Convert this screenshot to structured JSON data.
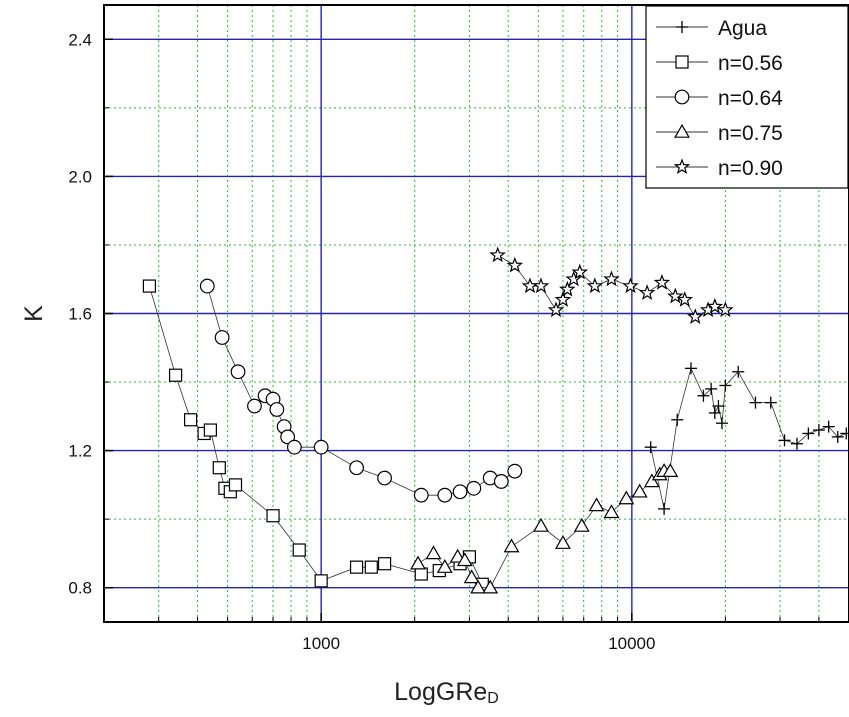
{
  "chart_data": {
    "type": "scatter",
    "xlabel": "LogGRe",
    "xlabel_subscript": "D",
    "ylabel": "K",
    "xscale": "log",
    "xlim": [
      200,
      50000
    ],
    "ylim": [
      0.7,
      2.5
    ],
    "x_major_ticks": [
      1000,
      10000
    ],
    "x_tick_labels": [
      "1000",
      "10000"
    ],
    "y_major_ticks": [
      0.8,
      1.2,
      1.6,
      2.0,
      2.4
    ],
    "y_tick_labels": [
      "0.8",
      "1.2",
      "1.6",
      "2.0",
      "2.4"
    ],
    "y_minor_gridlines": [
      1.0,
      1.4,
      1.8,
      2.2
    ],
    "grid": "major solid blue, minor dotted green",
    "legend_position": "top-right",
    "colors": {
      "major_grid": "#2323b8",
      "minor_grid": "#2eb82e",
      "series": "#000000"
    },
    "series": [
      {
        "name": "Agua",
        "marker": "plus",
        "points": [
          [
            11500,
            1.21
          ],
          [
            12700,
            1.03
          ],
          [
            14000,
            1.29
          ],
          [
            15500,
            1.44
          ],
          [
            17000,
            1.36
          ],
          [
            18000,
            1.38
          ],
          [
            18500,
            1.31
          ],
          [
            19000,
            1.33
          ],
          [
            19500,
            1.28
          ],
          [
            20000,
            1.39
          ],
          [
            22000,
            1.43
          ],
          [
            25000,
            1.34
          ],
          [
            28000,
            1.34
          ],
          [
            31000,
            1.23
          ],
          [
            34000,
            1.22
          ],
          [
            37000,
            1.25
          ],
          [
            40000,
            1.26
          ],
          [
            43000,
            1.27
          ],
          [
            46000,
            1.24
          ],
          [
            49000,
            1.25
          ]
        ]
      },
      {
        "name": "n=0.56",
        "marker": "square",
        "points": [
          [
            280,
            1.68
          ],
          [
            340,
            1.42
          ],
          [
            380,
            1.29
          ],
          [
            420,
            1.25
          ],
          [
            440,
            1.26
          ],
          [
            470,
            1.15
          ],
          [
            490,
            1.09
          ],
          [
            510,
            1.08
          ],
          [
            530,
            1.1
          ],
          [
            700,
            1.01
          ],
          [
            850,
            0.91
          ],
          [
            1000,
            0.82
          ],
          [
            1300,
            0.86
          ],
          [
            1450,
            0.86
          ],
          [
            1600,
            0.87
          ],
          [
            2100,
            0.84
          ],
          [
            2400,
            0.85
          ],
          [
            2800,
            0.87
          ],
          [
            3000,
            0.89
          ],
          [
            3300,
            0.81
          ]
        ]
      },
      {
        "name": "n=0.64",
        "marker": "circle",
        "points": [
          [
            430,
            1.68
          ],
          [
            480,
            1.53
          ],
          [
            540,
            1.43
          ],
          [
            610,
            1.33
          ],
          [
            660,
            1.36
          ],
          [
            700,
            1.35
          ],
          [
            720,
            1.32
          ],
          [
            760,
            1.27
          ],
          [
            780,
            1.24
          ],
          [
            820,
            1.21
          ],
          [
            1000,
            1.21
          ],
          [
            1300,
            1.15
          ],
          [
            1600,
            1.12
          ],
          [
            2100,
            1.07
          ],
          [
            2500,
            1.07
          ],
          [
            2800,
            1.08
          ],
          [
            3100,
            1.09
          ],
          [
            3500,
            1.12
          ],
          [
            3800,
            1.11
          ],
          [
            4200,
            1.14
          ]
        ]
      },
      {
        "name": "n=0.75",
        "marker": "triangle",
        "points": [
          [
            2050,
            0.87
          ],
          [
            2300,
            0.9
          ],
          [
            2500,
            0.86
          ],
          [
            2750,
            0.89
          ],
          [
            2900,
            0.88
          ],
          [
            3050,
            0.83
          ],
          [
            3200,
            0.8
          ],
          [
            3500,
            0.8
          ],
          [
            4100,
            0.92
          ],
          [
            5100,
            0.98
          ],
          [
            6000,
            0.93
          ],
          [
            6900,
            0.98
          ],
          [
            7700,
            1.04
          ],
          [
            8600,
            1.02
          ],
          [
            9600,
            1.06
          ],
          [
            10600,
            1.08
          ],
          [
            11600,
            1.11
          ],
          [
            12300,
            1.13
          ],
          [
            12700,
            1.14
          ],
          [
            13300,
            1.14
          ]
        ]
      },
      {
        "name": "n=0.90",
        "marker": "star",
        "points": [
          [
            3700,
            1.77
          ],
          [
            4200,
            1.74
          ],
          [
            4700,
            1.68
          ],
          [
            5100,
            1.68
          ],
          [
            5700,
            1.61
          ],
          [
            6000,
            1.64
          ],
          [
            6200,
            1.67
          ],
          [
            6500,
            1.7
          ],
          [
            6800,
            1.72
          ],
          [
            7600,
            1.68
          ],
          [
            8600,
            1.7
          ],
          [
            9900,
            1.68
          ],
          [
            11200,
            1.66
          ],
          [
            12500,
            1.69
          ],
          [
            13800,
            1.65
          ],
          [
            14800,
            1.64
          ],
          [
            16000,
            1.59
          ],
          [
            17600,
            1.61
          ],
          [
            18500,
            1.62
          ],
          [
            20000,
            1.61
          ]
        ]
      }
    ]
  }
}
